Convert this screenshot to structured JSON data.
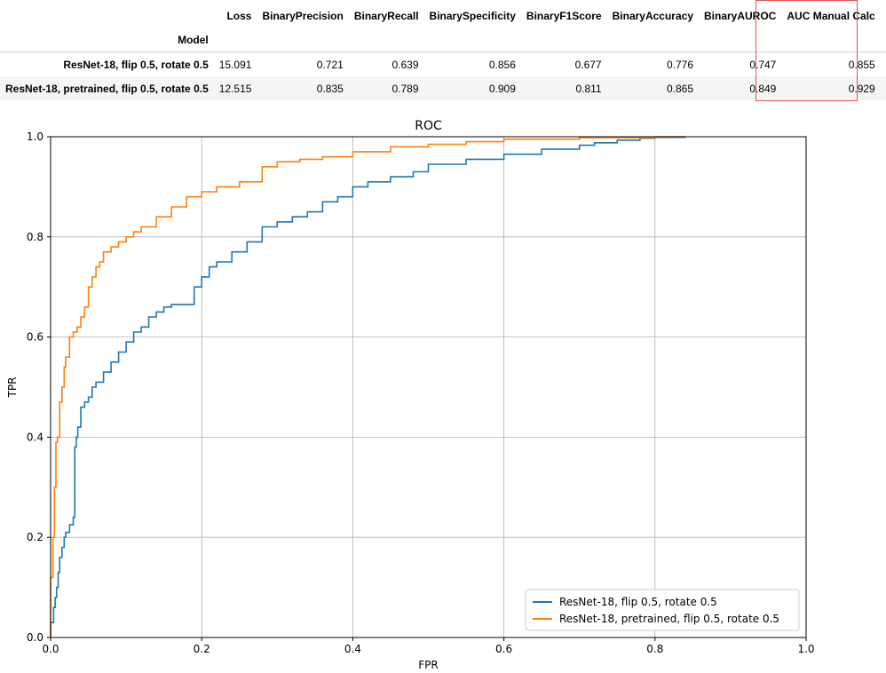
{
  "table": {
    "index_label": "Model",
    "columns": [
      "Loss",
      "BinaryPrecision",
      "BinaryRecall",
      "BinarySpecificity",
      "BinaryF1Score",
      "BinaryAccuracy",
      "BinaryAUROC",
      "AUC Manual Calc"
    ],
    "rows": [
      {
        "model": "ResNet-18, flip 0.5, rotate 0.5",
        "values": [
          "15.091",
          "0.721",
          "0.639",
          "0.856",
          "0.677",
          "0.776",
          "0.747",
          "0.855"
        ]
      },
      {
        "model": "ResNet-18, pretrained, flip 0.5, rotate 0.5",
        "values": [
          "12.515",
          "0.835",
          "0.789",
          "0.909",
          "0.811",
          "0.865",
          "0.849",
          "0.929"
        ]
      }
    ],
    "highlight_color": "#e05252"
  },
  "chart_data": {
    "type": "line",
    "title": "ROC",
    "xlabel": "FPR",
    "ylabel": "TPR",
    "xlim": [
      0.0,
      1.0
    ],
    "ylim": [
      0.0,
      1.0
    ],
    "xticks": [
      "0.0",
      "0.2",
      "0.4",
      "0.6",
      "0.8",
      "1.0"
    ],
    "yticks": [
      "0.0",
      "0.2",
      "0.4",
      "0.6",
      "0.8",
      "1.0"
    ],
    "grid": true,
    "legend_position": "lower-right",
    "series": [
      {
        "name": "ResNet-18, flip 0.5, rotate 0.5",
        "color": "#1f77b4",
        "x": [
          0.0,
          0.0,
          0.004,
          0.006,
          0.008,
          0.01,
          0.012,
          0.015,
          0.018,
          0.02,
          0.025,
          0.03,
          0.032,
          0.034,
          0.036,
          0.04,
          0.045,
          0.05,
          0.055,
          0.06,
          0.07,
          0.08,
          0.09,
          0.1,
          0.11,
          0.12,
          0.13,
          0.14,
          0.15,
          0.16,
          0.18,
          0.19,
          0.2,
          0.21,
          0.22,
          0.24,
          0.26,
          0.28,
          0.3,
          0.32,
          0.34,
          0.36,
          0.38,
          0.4,
          0.42,
          0.45,
          0.48,
          0.5,
          0.55,
          0.6,
          0.65,
          0.7,
          0.72,
          0.75,
          0.78,
          0.8,
          0.84
        ],
        "y": [
          0.0,
          0.03,
          0.06,
          0.08,
          0.1,
          0.13,
          0.16,
          0.18,
          0.2,
          0.21,
          0.225,
          0.24,
          0.38,
          0.4,
          0.42,
          0.46,
          0.47,
          0.48,
          0.5,
          0.51,
          0.53,
          0.55,
          0.57,
          0.59,
          0.61,
          0.62,
          0.64,
          0.65,
          0.66,
          0.665,
          0.665,
          0.7,
          0.72,
          0.74,
          0.75,
          0.77,
          0.79,
          0.82,
          0.83,
          0.84,
          0.85,
          0.87,
          0.88,
          0.9,
          0.91,
          0.92,
          0.93,
          0.945,
          0.955,
          0.965,
          0.975,
          0.983,
          0.988,
          0.993,
          0.997,
          0.999,
          1.0
        ]
      },
      {
        "name": "ResNet-18, pretrained, flip 0.5, rotate 0.5",
        "color": "#ff7f0e",
        "x": [
          0.0,
          0.0,
          0.003,
          0.005,
          0.007,
          0.009,
          0.012,
          0.015,
          0.018,
          0.02,
          0.025,
          0.03,
          0.035,
          0.04,
          0.045,
          0.05,
          0.055,
          0.06,
          0.065,
          0.07,
          0.08,
          0.09,
          0.1,
          0.11,
          0.12,
          0.14,
          0.16,
          0.18,
          0.2,
          0.22,
          0.25,
          0.28,
          0.3,
          0.33,
          0.36,
          0.4,
          0.45,
          0.5,
          0.55,
          0.6,
          0.7,
          0.8,
          0.84
        ],
        "y": [
          0.0,
          0.12,
          0.2,
          0.3,
          0.39,
          0.4,
          0.47,
          0.5,
          0.54,
          0.56,
          0.6,
          0.61,
          0.62,
          0.64,
          0.66,
          0.7,
          0.72,
          0.74,
          0.75,
          0.77,
          0.78,
          0.79,
          0.8,
          0.81,
          0.82,
          0.84,
          0.86,
          0.88,
          0.89,
          0.9,
          0.91,
          0.94,
          0.95,
          0.955,
          0.96,
          0.97,
          0.98,
          0.985,
          0.99,
          0.995,
          0.998,
          1.0,
          1.0
        ]
      }
    ]
  }
}
